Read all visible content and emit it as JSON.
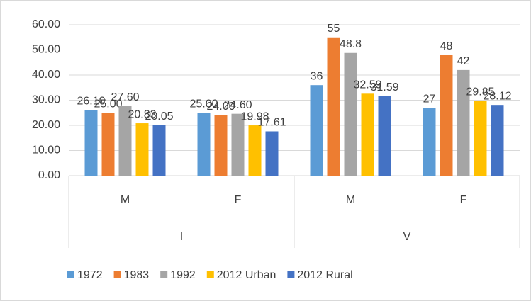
{
  "chart_data": {
    "type": "bar",
    "groups": [
      {
        "label": "I",
        "categories": [
          "M",
          "F"
        ]
      },
      {
        "label": "V",
        "categories": [
          "M",
          "F"
        ]
      }
    ],
    "series": [
      {
        "name": "1972",
        "color": "#5b9bd5",
        "values": [
          26.1,
          25,
          36,
          27
        ],
        "value_labels": [
          "26.10",
          "25.00",
          "36",
          "27"
        ]
      },
      {
        "name": "1983",
        "color": "#ed7d31",
        "values": [
          25,
          24,
          55,
          48
        ],
        "value_labels": [
          "25.00",
          "24.00",
          "55",
          "48"
        ]
      },
      {
        "name": "1992",
        "color": "#a5a5a5",
        "values": [
          27.6,
          24.6,
          48.8,
          42
        ],
        "value_labels": [
          "27.60",
          "24.60",
          "48.8",
          "42"
        ]
      },
      {
        "name": "2012 Urban",
        "color": "#ffc000",
        "values": [
          20.83,
          19.98,
          32.59,
          29.85
        ],
        "value_labels": [
          "20.83",
          "19.98",
          "32.59",
          "29.85"
        ]
      },
      {
        "name": "2012 Rural",
        "color": "#4472c4",
        "values": [
          20.05,
          17.61,
          31.59,
          28.12
        ],
        "value_labels": [
          "20.05",
          "17.61",
          "31.59",
          "28.12"
        ]
      }
    ],
    "ylim": [
      0,
      60
    ],
    "yticks": [
      {
        "value": 0,
        "label": "0.00"
      },
      {
        "value": 10,
        "label": "10.00"
      },
      {
        "value": 20,
        "label": "20.00"
      },
      {
        "value": 30,
        "label": "30.00"
      },
      {
        "value": 40,
        "label": "40.00"
      },
      {
        "value": 50,
        "label": "50.00"
      },
      {
        "value": 60,
        "label": "60.00"
      }
    ],
    "grid": true,
    "legend": "bottom"
  }
}
